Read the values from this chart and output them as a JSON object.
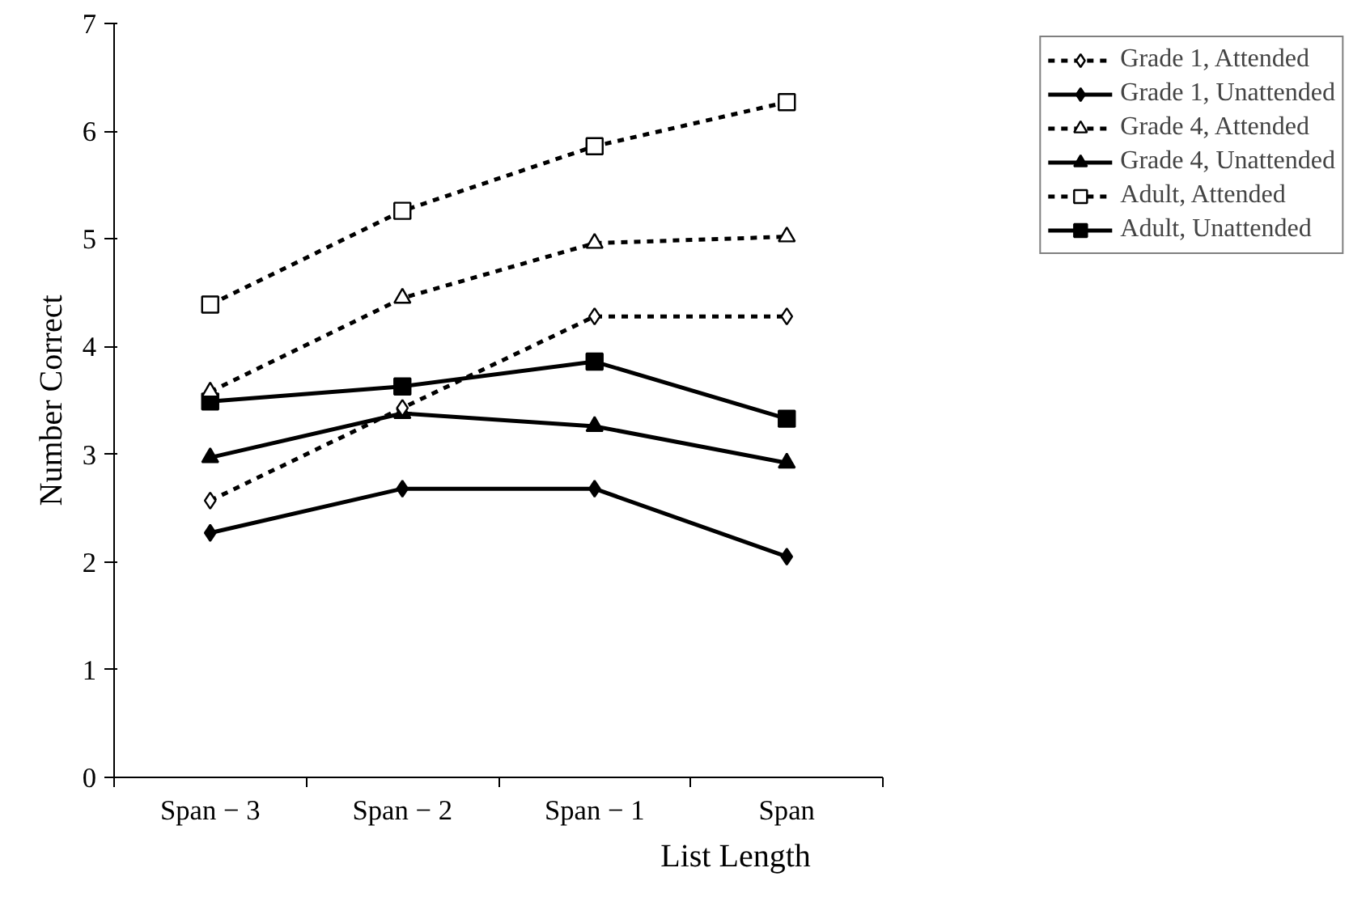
{
  "chart_data": {
    "type": "line",
    "xlabel": "List Length",
    "ylabel": "Number Correct",
    "categories": [
      "Span − 3",
      "Span − 2",
      "Span − 1",
      "Span"
    ],
    "ylim": [
      0,
      7
    ],
    "yticks": [
      0,
      1,
      2,
      3,
      4,
      5,
      6,
      7
    ],
    "grid": false,
    "legend": "right",
    "series": [
      {
        "name": "Grade 1, Attended",
        "color": "#000000",
        "marker": "diamond",
        "line_style": "dashed",
        "values": [
          2.57,
          3.43,
          4.28,
          4.28
        ]
      },
      {
        "name": "Grade 1, Unattended",
        "color": "#000000",
        "marker": "diamond",
        "line_style": "solid",
        "values": [
          2.27,
          2.68,
          2.68,
          2.05
        ]
      },
      {
        "name": "Grade 4, Attended",
        "color": "#000000",
        "marker": "triangle",
        "line_style": "dashed",
        "values": [
          3.58,
          4.45,
          4.96,
          5.02
        ]
      },
      {
        "name": "Grade 4, Unattended",
        "color": "#000000",
        "marker": "triangle",
        "line_style": "solid",
        "values": [
          2.97,
          3.38,
          3.26,
          2.92
        ]
      },
      {
        "name": "Adult, Attended",
        "color": "#000000",
        "marker": "square",
        "line_style": "dashed",
        "values": [
          4.39,
          5.26,
          5.86,
          6.27
        ]
      },
      {
        "name": "Adult, Unattended",
        "color": "#000000",
        "marker": "square",
        "line_style": "solid",
        "values": [
          3.49,
          3.63,
          3.86,
          3.33
        ]
      }
    ]
  }
}
